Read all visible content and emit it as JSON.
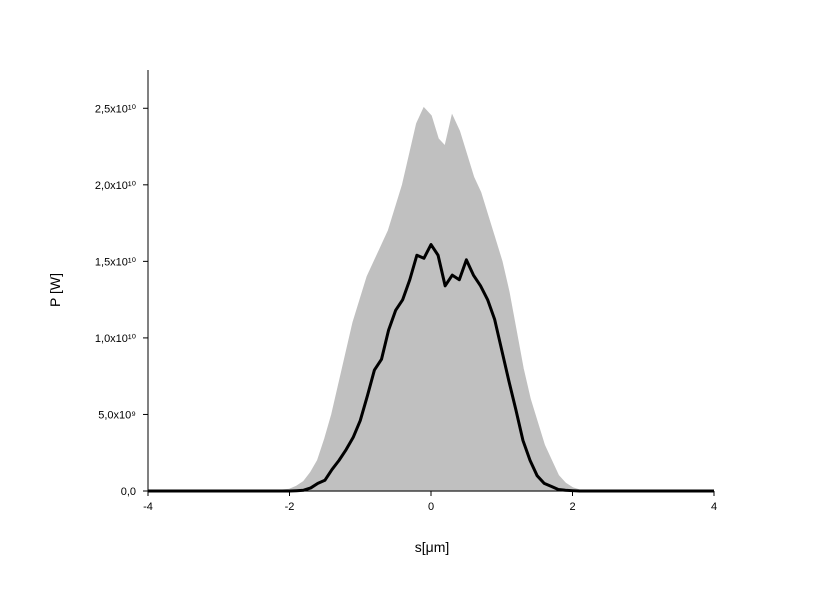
{
  "chart_data": {
    "type": "line",
    "xlabel": "s[μm]",
    "ylabel": "P [W]",
    "x": [
      -4,
      -2.2,
      -2.1,
      -2.0,
      -1.9,
      -1.8,
      -1.7,
      -1.6,
      -1.5,
      -1.4,
      -1.3,
      -1.2,
      -1.1,
      -1.0,
      -0.9,
      -0.8,
      -0.7,
      -0.6,
      -0.5,
      -0.4,
      -0.3,
      -0.2,
      -0.1,
      0,
      0.1,
      0.2,
      0.3,
      0.4,
      0.5,
      0.6,
      0.7,
      0.8,
      0.9,
      1.0,
      1.1,
      1.2,
      1.3,
      1.4,
      1.5,
      1.6,
      1.7,
      1.8,
      1.9,
      2.0,
      2.1,
      2.2,
      4
    ],
    "series": [
      {
        "color": "#c0c0c0",
        "fill": true,
        "values": [
          0,
          0,
          50000000.0,
          100000000.0,
          300000000.0,
          600000000.0,
          1200000000.0,
          2000000000.0,
          3400000000.0,
          5000000000.0,
          7000000000.0,
          9000000000.0,
          11000000000.0,
          12500000000.0,
          14000000000.0,
          15000000000.0,
          16000000000.0,
          17000000000.0,
          18500000000.0,
          20000000000.0,
          22000000000.0,
          24000000000.0,
          25000000000.0,
          24500000000.0,
          23000000000.0,
          22500000000.0,
          24500000000.0,
          23500000000.0,
          22000000000.0,
          20500000000.0,
          19500000000.0,
          18000000000.0,
          16500000000.0,
          15000000000.0,
          13000000000.0,
          10500000000.0,
          8000000000.0,
          6000000000.0,
          4500000000.0,
          3000000000.0,
          2000000000.0,
          1000000000.0,
          500000000.0,
          200000000.0,
          50000000.0,
          0,
          0
        ]
      },
      {
        "color": "#000000",
        "fill": false,
        "values": [
          0,
          0,
          0,
          0,
          20000000.0,
          50000000.0,
          200000000.0,
          500000000.0,
          700000000.0,
          1400000000.0,
          2000000000.0,
          2700000000.0,
          3500000000.0,
          4600000000.0,
          6200000000.0,
          7900000000.0,
          8600000000.0,
          10500000000.0,
          11800000000.0,
          12500000000.0,
          13800000000.0,
          15400000000.0,
          15200000000.0,
          16100000000.0,
          15400000000.0,
          13400000000.0,
          14100000000.0,
          13800000000.0,
          15100000000.0,
          14100000000.0,
          13400000000.0,
          12500000000.0,
          11200000000.0,
          9200000000.0,
          7200000000.0,
          5300000000.0,
          3300000000.0,
          2000000000.0,
          1000000000.0,
          500000000.0,
          300000000.0,
          100000000.0,
          50000000.0,
          20000000.0,
          0,
          0,
          0
        ]
      }
    ],
    "xlim": [
      -4,
      4
    ],
    "xticks": [
      -4,
      -2,
      0,
      2,
      4
    ],
    "ylim": [
      0,
      27500000000.0
    ],
    "yticks": [
      {
        "value": 0,
        "label": "0,0"
      },
      {
        "value": 5000000000.0,
        "label": "5,0x10⁹"
      },
      {
        "value": 10000000000.0,
        "label": "1,0x10¹⁰"
      },
      {
        "value": 15000000000.0,
        "label": "1,5x10¹⁰"
      },
      {
        "value": 20000000000.0,
        "label": "2,0x10¹⁰"
      },
      {
        "value": 25000000000.0,
        "label": "2,5x10¹⁰"
      }
    ],
    "grid": false
  }
}
